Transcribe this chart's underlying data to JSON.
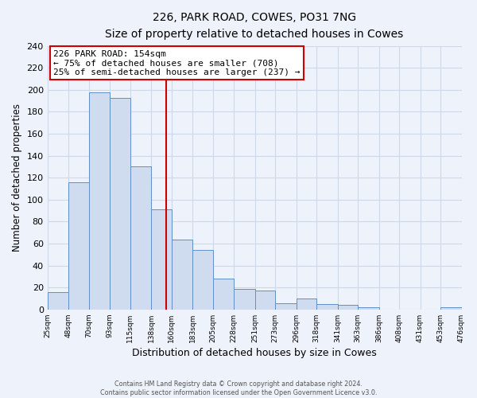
{
  "title_line1": "226, PARK ROAD, COWES, PO31 7NG",
  "title_line2": "Size of property relative to detached houses in Cowes",
  "xlabel": "Distribution of detached houses by size in Cowes",
  "ylabel": "Number of detached properties",
  "bin_edges": [
    25,
    48,
    70,
    93,
    115,
    138,
    160,
    183,
    205,
    228,
    251,
    273,
    296,
    318,
    341,
    363,
    386,
    408,
    431,
    453,
    476
  ],
  "bar_heights": [
    16,
    116,
    198,
    193,
    130,
    91,
    64,
    54,
    28,
    19,
    17,
    6,
    10,
    5,
    4,
    2,
    0,
    0,
    0,
    2
  ],
  "tick_labels": [
    "25sqm",
    "48sqm",
    "70sqm",
    "93sqm",
    "115sqm",
    "138sqm",
    "160sqm",
    "183sqm",
    "205sqm",
    "228sqm",
    "251sqm",
    "273sqm",
    "296sqm",
    "318sqm",
    "341sqm",
    "363sqm",
    "386sqm",
    "408sqm",
    "431sqm",
    "453sqm",
    "476sqm"
  ],
  "tick_positions": [
    25,
    48,
    70,
    93,
    115,
    138,
    160,
    183,
    205,
    228,
    251,
    273,
    296,
    318,
    341,
    363,
    386,
    408,
    431,
    453,
    476
  ],
  "ylim": [
    0,
    240
  ],
  "yticks": [
    0,
    20,
    40,
    60,
    80,
    100,
    120,
    140,
    160,
    180,
    200,
    220,
    240
  ],
  "property_size": 154,
  "property_label": "226 PARK ROAD: 154sqm",
  "annotation_line1": "← 75% of detached houses are smaller (708)",
  "annotation_line2": "25% of semi-detached houses are larger (237) →",
  "bar_fill_color": "#cfdcf0",
  "bar_edge_color": "#6090c8",
  "vline_color": "#cc0000",
  "annotation_box_edge": "#cc0000",
  "annotation_box_fill": "#ffffff",
  "grid_color": "#ccd8ec",
  "bg_color": "#eef2fa",
  "footer_line1": "Contains HM Land Registry data © Crown copyright and database right 2024.",
  "footer_line2": "Contains public sector information licensed under the Open Government Licence v3.0."
}
